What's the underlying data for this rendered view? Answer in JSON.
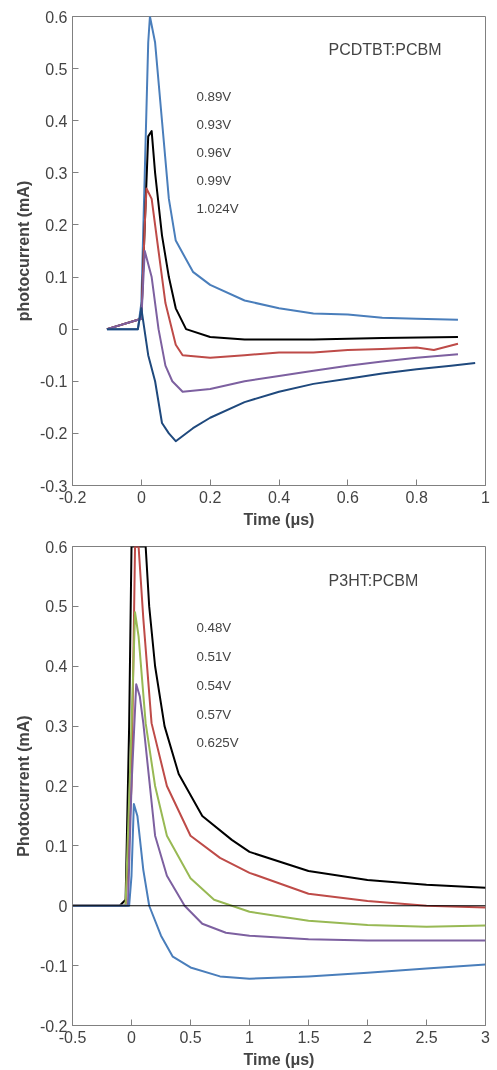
{
  "chart_data": [
    {
      "type": "line",
      "xlabel": "Time (μs)",
      "ylabel": "photocurrent (mA)",
      "xlim": [
        -0.2,
        1.0
      ],
      "ylim": [
        -0.3,
        0.6
      ],
      "xticks": [
        -0.2,
        0,
        0.2,
        0.4,
        0.6,
        0.8,
        1
      ],
      "yticks": [
        -0.3,
        -0.2,
        -0.1,
        0,
        0.1,
        0.2,
        0.3,
        0.4,
        0.5,
        0.6
      ],
      "grid": false,
      "marker": "none",
      "line_style": "solid",
      "annotations": [
        "PCDTBT:PCBM",
        "0.89V",
        "0.93V",
        "0.96V",
        "0.99V",
        "1.024V"
      ],
      "series": [
        {
          "color": "#4a7ebb",
          "x": [
            -0.1,
            -0.01,
            0.0,
            0.01,
            0.02,
            0.025,
            0.04,
            0.06,
            0.08,
            0.1,
            0.15,
            0.2,
            0.3,
            0.4,
            0.5,
            0.6,
            0.7,
            0.8,
            0.92
          ],
          "values": [
            0,
            0,
            0.05,
            0.3,
            0.55,
            0.6,
            0.55,
            0.4,
            0.25,
            0.17,
            0.11,
            0.085,
            0.055,
            0.04,
            0.03,
            0.028,
            0.022,
            0.02,
            0.018
          ]
        },
        {
          "color": "#000000",
          "x": [
            -0.1,
            0,
            0.01,
            0.02,
            0.03,
            0.04,
            0.06,
            0.08,
            0.1,
            0.13,
            0.2,
            0.3,
            0.5,
            0.7,
            0.92
          ],
          "values": [
            0,
            0.02,
            0.2,
            0.37,
            0.38,
            0.3,
            0.18,
            0.1,
            0.04,
            0.0,
            -0.015,
            -0.02,
            -0.02,
            -0.017,
            -0.015
          ]
        },
        {
          "color": "#be4b48",
          "x": [
            -0.1,
            0,
            0.01,
            0.015,
            0.03,
            0.05,
            0.07,
            0.1,
            0.12,
            0.2,
            0.3,
            0.4,
            0.5,
            0.6,
            0.7,
            0.8,
            0.85,
            0.92
          ],
          "values": [
            0,
            0.02,
            0.2,
            0.27,
            0.25,
            0.15,
            0.05,
            -0.03,
            -0.05,
            -0.055,
            -0.05,
            -0.045,
            -0.045,
            -0.04,
            -0.038,
            -0.035,
            -0.04,
            -0.028
          ]
        },
        {
          "color": "#7d60a0",
          "x": [
            -0.1,
            0,
            0.01,
            0.03,
            0.05,
            0.07,
            0.09,
            0.12,
            0.2,
            0.3,
            0.4,
            0.5,
            0.6,
            0.7,
            0.8,
            0.92
          ],
          "values": [
            0,
            0.02,
            0.15,
            0.1,
            0.0,
            -0.07,
            -0.1,
            -0.12,
            -0.115,
            -0.1,
            -0.09,
            -0.08,
            -0.07,
            -0.062,
            -0.055,
            -0.048
          ]
        },
        {
          "color": "#1f497d",
          "x": [
            -0.1,
            -0.01,
            0.0,
            0.02,
            0.04,
            0.06,
            0.08,
            0.1,
            0.15,
            0.2,
            0.3,
            0.4,
            0.5,
            0.6,
            0.7,
            0.8,
            0.9,
            0.97
          ],
          "values": [
            0,
            0,
            0.04,
            -0.05,
            -0.1,
            -0.18,
            -0.2,
            -0.215,
            -0.19,
            -0.17,
            -0.14,
            -0.12,
            -0.105,
            -0.095,
            -0.085,
            -0.077,
            -0.07,
            -0.065
          ]
        }
      ]
    },
    {
      "type": "line",
      "xlabel": "Time (μs)",
      "ylabel": "Photocurrent (mA)",
      "xlim": [
        -0.5,
        3
      ],
      "ylim": [
        -0.2,
        0.6
      ],
      "xticks": [
        -0.5,
        0,
        0.5,
        1,
        1.5,
        2,
        2.5,
        3
      ],
      "yticks": [
        -0.2,
        -0.1,
        0,
        0.1,
        0.2,
        0.3,
        0.4,
        0.5,
        0.6
      ],
      "grid": false,
      "marker": "none",
      "line_style": "solid",
      "ref_lines": [
        {
          "axis": "y",
          "value": 0,
          "color": "#000000"
        }
      ],
      "annotations": [
        "P3HT:PCBM",
        "0.48V",
        "0.51V",
        "0.54V",
        "0.57V",
        "0.625V"
      ],
      "series": [
        {
          "color": "#000000",
          "x": [
            -0.5,
            -0.1,
            -0.05,
            -0.02,
            0.0,
            0.12,
            0.15,
            0.2,
            0.28,
            0.4,
            0.6,
            0.85,
            1.0,
            1.5,
            2,
            2.5,
            3
          ],
          "values": [
            0,
            0,
            0.01,
            0.3,
            0.6,
            0.6,
            0.5,
            0.4,
            0.3,
            0.22,
            0.15,
            0.11,
            0.09,
            0.058,
            0.043,
            0.035,
            0.03
          ]
        },
        {
          "color": "#be4b48",
          "x": [
            -0.5,
            -0.05,
            0,
            0.03,
            0.06,
            0.1,
            0.17,
            0.3,
            0.5,
            0.75,
            1,
            1.5,
            2,
            2.5,
            3
          ],
          "values": [
            0,
            0,
            0.2,
            0.6,
            0.6,
            0.48,
            0.305,
            0.2,
            0.117,
            0.08,
            0.055,
            0.02,
            0.008,
            0.0,
            -0.003
          ]
        },
        {
          "color": "#98b954",
          "x": [
            -0.5,
            -0.05,
            0,
            0.03,
            0.06,
            0.12,
            0.2,
            0.3,
            0.5,
            0.7,
            0.85,
            1,
            1.5,
            2,
            2.5,
            3
          ],
          "values": [
            0,
            0,
            0.3,
            0.49,
            0.45,
            0.305,
            0.2,
            0.117,
            0.046,
            0.01,
            0,
            -0.01,
            -0.025,
            -0.032,
            -0.035,
            -0.033
          ]
        },
        {
          "color": "#7d60a0",
          "x": [
            -0.5,
            -0.03,
            0.0,
            0.04,
            0.07,
            0.1,
            0.2,
            0.3,
            0.45,
            0.6,
            0.8,
            1,
            1.5,
            2,
            3
          ],
          "values": [
            0,
            0,
            0.2,
            0.37,
            0.35,
            0.305,
            0.117,
            0.05,
            0.0,
            -0.03,
            -0.045,
            -0.05,
            -0.056,
            -0.058,
            -0.058
          ]
        },
        {
          "color": "#4a7ebb",
          "x": [
            -0.5,
            -0.02,
            0.0,
            0.02,
            0.05,
            0.1,
            0.15,
            0.25,
            0.35,
            0.5,
            0.75,
            1,
            1.5,
            2,
            2.5,
            3
          ],
          "values": [
            0,
            0,
            0.05,
            0.17,
            0.15,
            0.06,
            0,
            -0.05,
            -0.085,
            -0.103,
            -0.118,
            -0.122,
            -0.118,
            -0.112,
            -0.105,
            -0.098
          ]
        }
      ]
    }
  ]
}
